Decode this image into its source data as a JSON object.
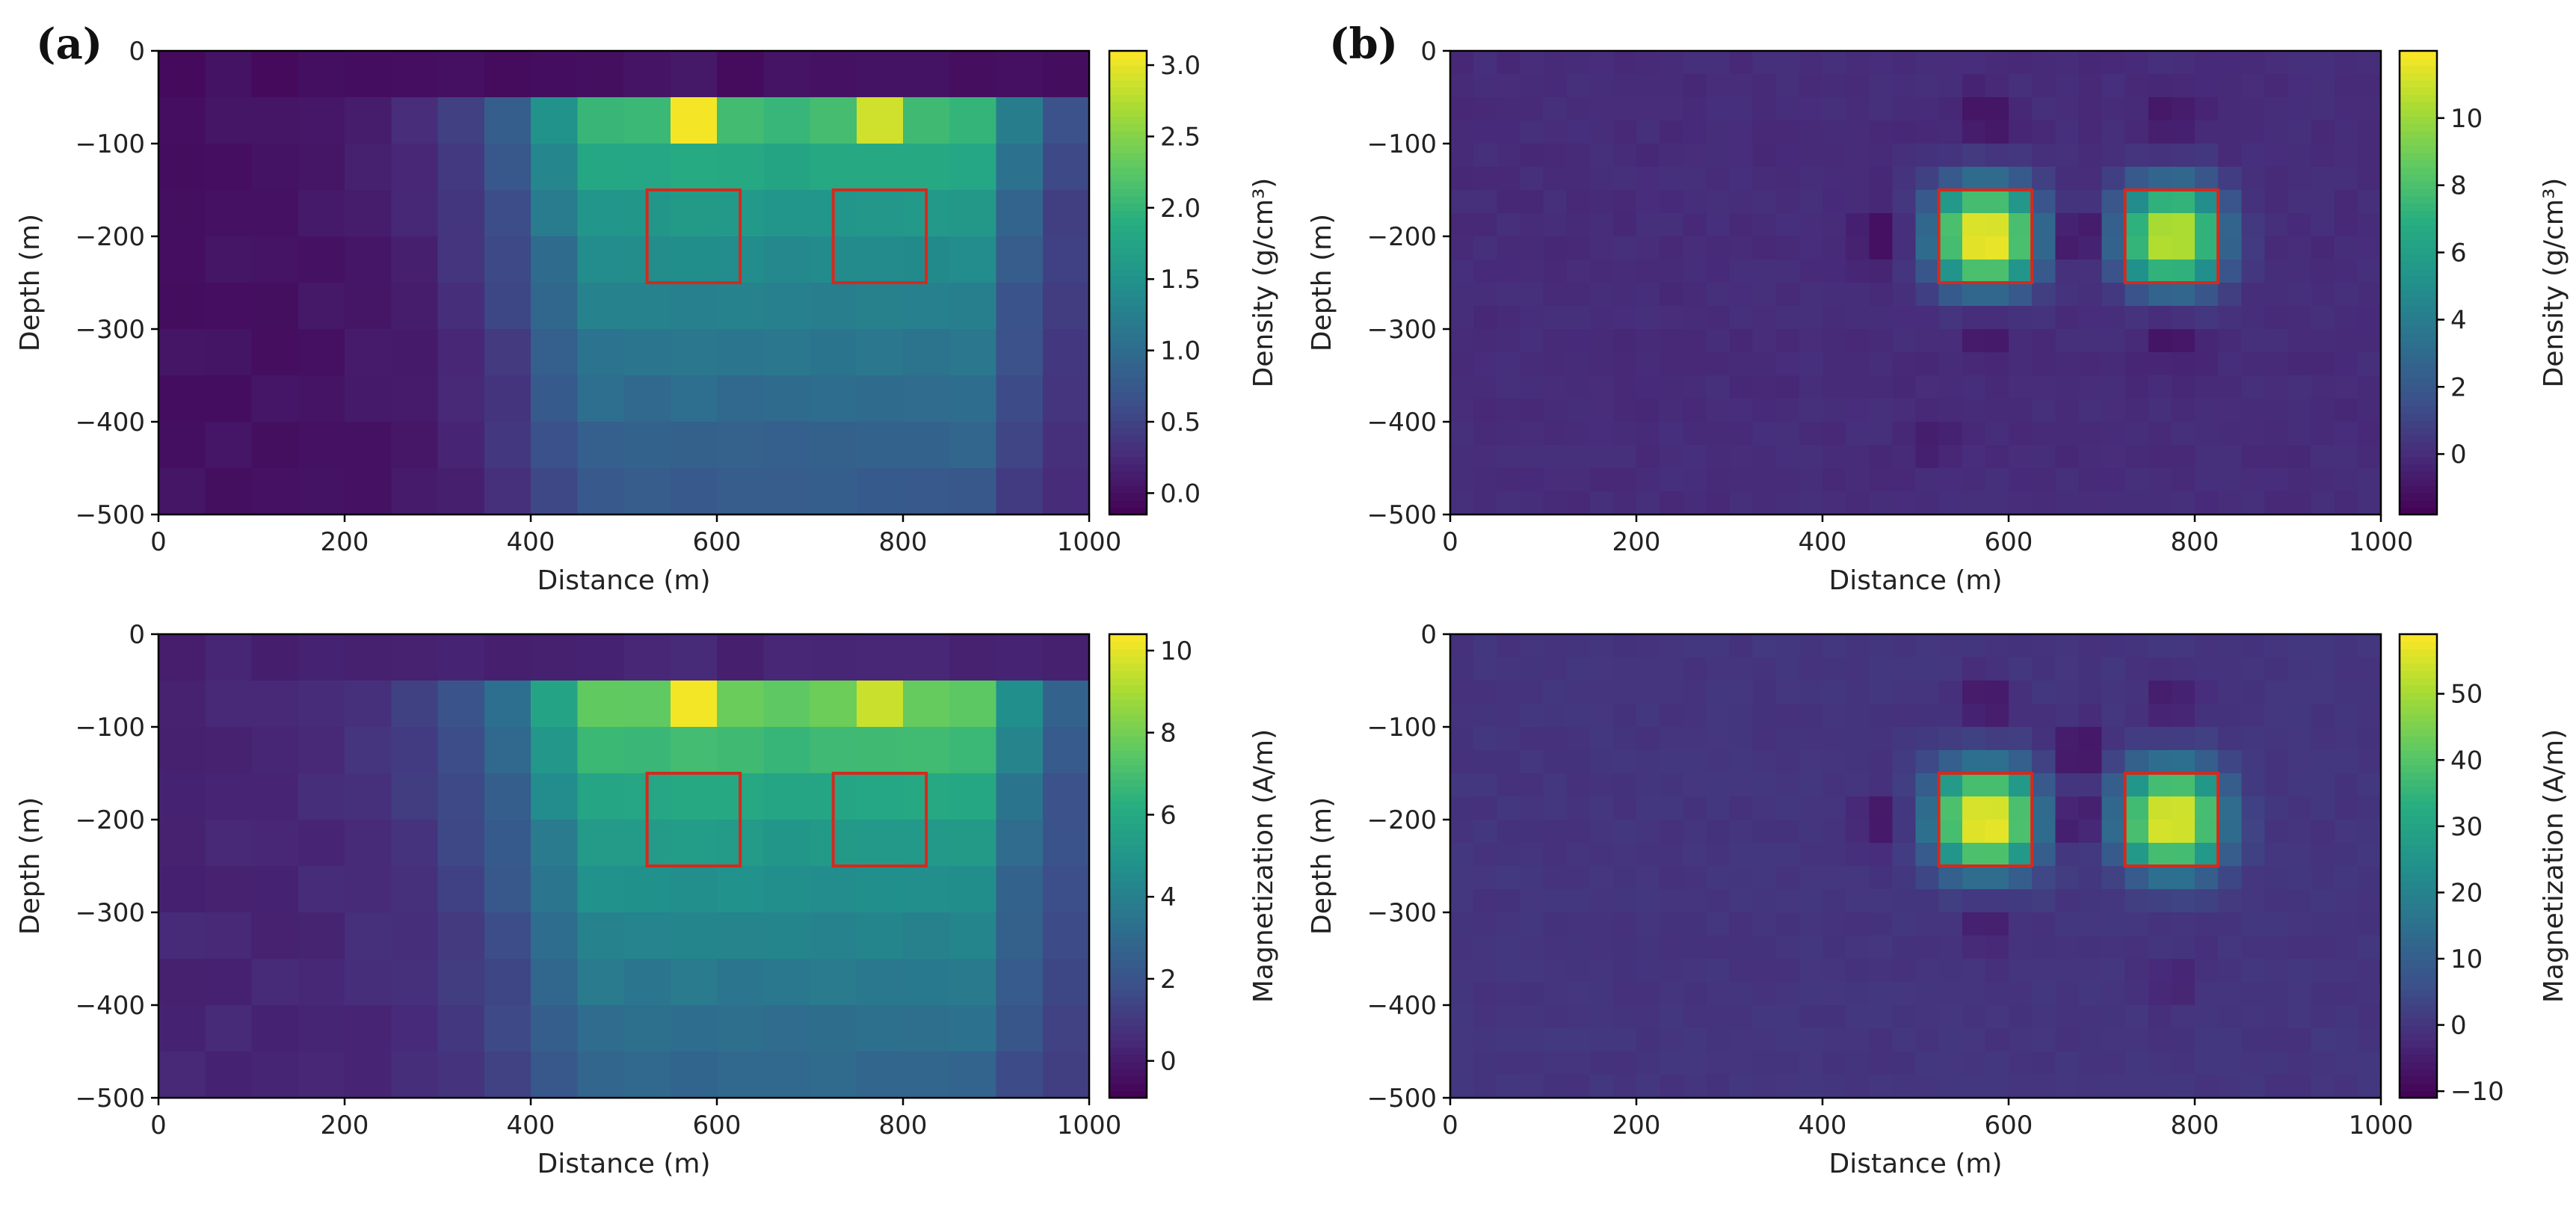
{
  "figure": {
    "panel_labels": [
      "(a)",
      "(b)"
    ],
    "colors": {
      "box_outline": "#d42a1e",
      "axis": "#000000",
      "colormap": [
        "#440154",
        "#3b528b",
        "#21918c",
        "#5ec962",
        "#fde725"
      ]
    }
  },
  "chart_data": [
    {
      "id": "a-top",
      "type": "heatmap",
      "panel": "(a)",
      "title": "",
      "xlabel": "Distance (m)",
      "ylabel": "Depth (m)",
      "xlim": [
        0,
        1000
      ],
      "ylim": [
        -500,
        0
      ],
      "xticks": [
        0,
        200,
        400,
        600,
        800,
        1000
      ],
      "yticks": [
        0,
        -100,
        -200,
        -300,
        -400,
        -500
      ],
      "colorbar": {
        "label": "Density (g/cm³)",
        "range": [
          -0.15,
          3.1
        ],
        "ticks": [
          3.0,
          2.5,
          2.0,
          1.5,
          1.0,
          0.5,
          0.0
        ]
      },
      "grid": {
        "cell_m": 50,
        "nx": 20,
        "ny": 10
      },
      "field": {
        "model": "smoothed",
        "bg": 0.0,
        "plume": {
          "x_range": [
            450,
            880
          ],
          "top": -50,
          "peak": 2.15,
          "depth_decay": 0.0024,
          "edge_decay": 0.012
        },
        "peaks": [
          {
            "x": 575,
            "y": -75,
            "v": 3.05,
            "rx": 30,
            "ry": 25
          },
          {
            "x": 775,
            "y": -75,
            "v": 2.9,
            "rx": 30,
            "ry": 25
          }
        ]
      },
      "boxes": [
        {
          "x0": 525,
          "x1": 625,
          "y0": -250,
          "y1": -150
        },
        {
          "x0": 725,
          "x1": 825,
          "y0": -250,
          "y1": -150
        }
      ]
    },
    {
      "id": "b-top",
      "type": "heatmap",
      "panel": "(b)",
      "title": "",
      "xlabel": "Distance (m)",
      "ylabel": "Depth (m)",
      "xlim": [
        0,
        1000
      ],
      "ylim": [
        -500,
        0
      ],
      "xticks": [
        0,
        200,
        400,
        600,
        800,
        1000
      ],
      "yticks": [
        0,
        -100,
        -200,
        -300,
        -400,
        -500
      ],
      "colorbar": {
        "label": "Density (g/cm³)",
        "range": [
          -1.8,
          12
        ],
        "ticks": [
          10,
          8,
          6,
          4,
          2,
          0
        ]
      },
      "grid": {
        "cell_m": 25,
        "nx": 40,
        "ny": 20
      },
      "field": {
        "model": "compact",
        "bg": 0.0,
        "peaks": [
          {
            "x": 575,
            "y": -200,
            "v": 11.5,
            "rx": 45,
            "ry": 45
          },
          {
            "x": 775,
            "y": -200,
            "v": 10.5,
            "rx": 45,
            "ry": 45
          }
        ],
        "lows": [
          {
            "x": 462,
            "y": -200,
            "v": -1.6
          },
          {
            "x": 675,
            "y": -200,
            "v": -1.7
          },
          {
            "x": 575,
            "y": -75,
            "v": -1.2
          },
          {
            "x": 775,
            "y": -75,
            "v": -1.0
          },
          {
            "x": 575,
            "y": -310,
            "v": -0.8
          },
          {
            "x": 775,
            "y": -310,
            "v": -1.1
          },
          {
            "x": 520,
            "y": -420,
            "v": -0.7
          }
        ]
      },
      "boxes": [
        {
          "x0": 525,
          "x1": 625,
          "y0": -250,
          "y1": -150
        },
        {
          "x0": 725,
          "x1": 825,
          "y0": -250,
          "y1": -150
        }
      ]
    },
    {
      "id": "a-bottom",
      "type": "heatmap",
      "panel": "(a)",
      "title": "",
      "xlabel": "Distance (m)",
      "ylabel": "Depth (m)",
      "xlim": [
        0,
        1000
      ],
      "ylim": [
        -500,
        0
      ],
      "xticks": [
        0,
        200,
        400,
        600,
        800,
        1000
      ],
      "yticks": [
        0,
        -100,
        -200,
        -300,
        -400,
        -500
      ],
      "colorbar": {
        "label": "Magnetization (A/m)",
        "range": [
          -0.9,
          10.4
        ],
        "ticks": [
          10,
          8,
          6,
          4,
          2,
          0
        ]
      },
      "grid": {
        "cell_m": 50,
        "nx": 20,
        "ny": 10
      },
      "field": {
        "model": "smoothed",
        "bg": 0.3,
        "plume": {
          "x_range": [
            450,
            880
          ],
          "top": -50,
          "peak": 7.8,
          "depth_decay": 0.0026,
          "edge_decay": 0.012
        },
        "peaks": [
          {
            "x": 575,
            "y": -75,
            "v": 10.2,
            "rx": 30,
            "ry": 25
          },
          {
            "x": 775,
            "y": -75,
            "v": 9.6,
            "rx": 30,
            "ry": 25
          }
        ]
      },
      "boxes": [
        {
          "x0": 525,
          "x1": 625,
          "y0": -250,
          "y1": -150
        },
        {
          "x0": 725,
          "x1": 825,
          "y0": -250,
          "y1": -150
        }
      ]
    },
    {
      "id": "b-bottom",
      "type": "heatmap",
      "panel": "(b)",
      "title": "",
      "xlabel": "Distance (m)",
      "ylabel": "Depth (m)",
      "xlim": [
        0,
        1000
      ],
      "ylim": [
        -500,
        0
      ],
      "xticks": [
        0,
        200,
        400,
        600,
        800,
        1000
      ],
      "yticks": [
        0,
        -100,
        -200,
        -300,
        -400,
        -500
      ],
      "colorbar": {
        "label": "Magnetization (A/m)",
        "range": [
          -11,
          59
        ],
        "ticks": [
          50,
          40,
          30,
          20,
          10,
          0,
          -10
        ]
      },
      "grid": {
        "cell_m": 25,
        "nx": 40,
        "ny": 20
      },
      "field": {
        "model": "compact",
        "bg": 0.0,
        "peaks": [
          {
            "x": 575,
            "y": -200,
            "v": 56,
            "rx": 45,
            "ry": 45
          },
          {
            "x": 775,
            "y": -200,
            "v": 55,
            "rx": 45,
            "ry": 45
          }
        ],
        "lows": [
          {
            "x": 675,
            "y": -200,
            "v": -10
          },
          {
            "x": 462,
            "y": -200,
            "v": -8
          },
          {
            "x": 575,
            "y": -75,
            "v": -7
          },
          {
            "x": 775,
            "y": -75,
            "v": -6
          },
          {
            "x": 675,
            "y": -125,
            "v": -9
          },
          {
            "x": 575,
            "y": -320,
            "v": -5
          },
          {
            "x": 775,
            "y": -380,
            "v": -4
          }
        ]
      },
      "boxes": [
        {
          "x0": 525,
          "x1": 625,
          "y0": -250,
          "y1": -150
        },
        {
          "x0": 725,
          "x1": 825,
          "y0": -250,
          "y1": -150
        }
      ]
    }
  ]
}
